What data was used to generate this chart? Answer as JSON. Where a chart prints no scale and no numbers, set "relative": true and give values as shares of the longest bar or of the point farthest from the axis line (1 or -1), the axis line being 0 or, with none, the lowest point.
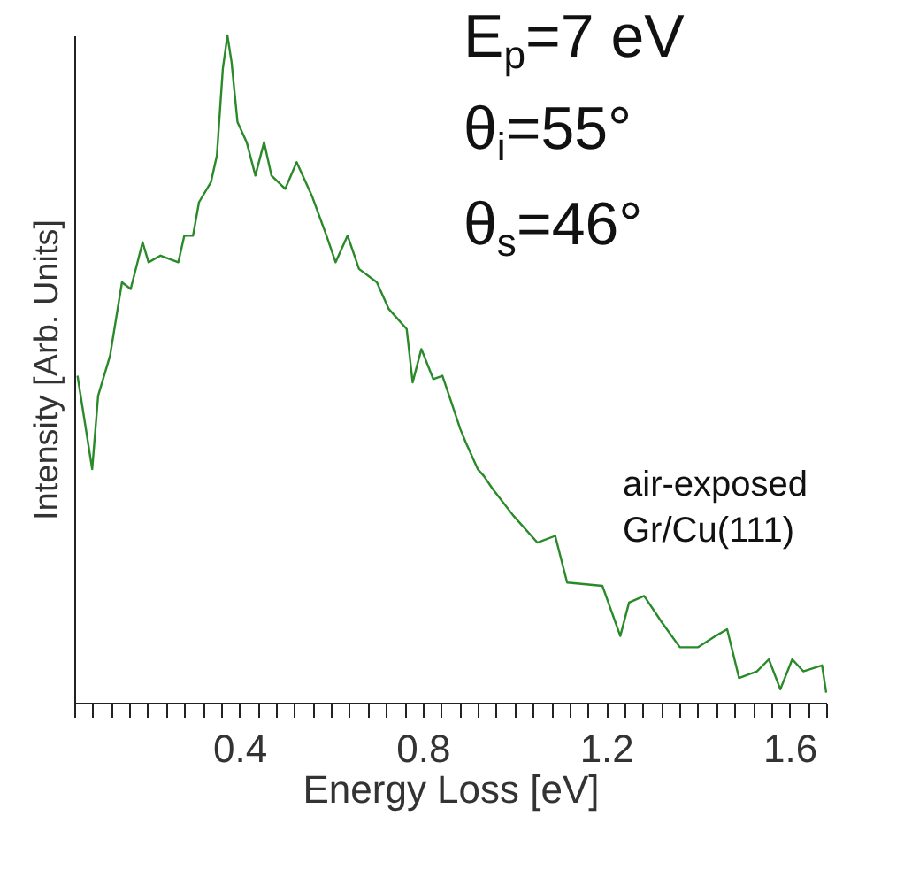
{
  "chart_data": {
    "type": "line",
    "relative": true,
    "xlabel": "Energy Loss [eV]",
    "ylabel": "Intensity [Arb. Units]",
    "annotations": [
      "E$_{p}$=7 eV",
      "θ$_{i}$=55°",
      "θ$_{s}$=46°",
      "air-exposed",
      "Gr/Cu(111)"
    ],
    "xlim": [
      0.04,
      1.68
    ],
    "xticks": [
      {
        "value": 0.04,
        "label": null
      },
      {
        "value": 0.08,
        "label": null
      },
      {
        "value": 0.12,
        "label": null
      },
      {
        "value": 0.16,
        "label": null
      },
      {
        "value": 0.2,
        "label": null
      },
      {
        "value": 0.24,
        "label": null
      },
      {
        "value": 0.28,
        "label": null
      },
      {
        "value": 0.32,
        "label": null
      },
      {
        "value": 0.36,
        "label": null
      },
      0.4,
      {
        "value": 0.44,
        "label": null
      },
      {
        "value": 0.48,
        "label": null
      },
      {
        "value": 0.52,
        "label": null
      },
      {
        "value": 0.56,
        "label": null
      },
      {
        "value": 0.6,
        "label": null
      },
      {
        "value": 0.64,
        "label": null
      },
      {
        "value": 0.68,
        "label": null
      },
      {
        "value": 0.72,
        "label": null
      },
      {
        "value": 0.76,
        "label": null
      },
      0.8,
      {
        "value": 0.84,
        "label": null
      },
      {
        "value": 0.88,
        "label": null
      },
      {
        "value": 0.92,
        "label": null
      },
      {
        "value": 0.96,
        "label": null
      },
      {
        "value": 1,
        "label": null
      },
      {
        "value": 1.04,
        "label": null
      },
      {
        "value": 1.08,
        "label": null
      },
      {
        "value": 1.12,
        "label": null
      },
      {
        "value": 1.16,
        "label": null
      },
      1.2,
      {
        "value": 1.24,
        "label": null
      },
      {
        "value": 1.28,
        "label": null
      },
      {
        "value": 1.32,
        "label": null
      },
      {
        "value": 1.36,
        "label": null
      },
      {
        "value": 1.4,
        "label": null
      },
      {
        "value": 1.44,
        "label": null
      },
      {
        "value": 1.48,
        "label": null
      },
      {
        "value": 1.52,
        "label": null
      },
      {
        "value": 1.56,
        "label": null
      },
      1.6,
      {
        "value": 1.64,
        "label": null
      },
      {
        "value": 1.68,
        "label": null
      }
    ],
    "grid": false,
    "marker": "none",
    "line_style": "solid",
    "series": [
      {
        "color": "#2a8a2a",
        "x": [
          0.047,
          0.079,
          0.092,
          0.118,
          0.144,
          0.163,
          0.189,
          0.202,
          0.228,
          0.267,
          0.28,
          0.299,
          0.312,
          0.338,
          0.351,
          0.364,
          0.374,
          0.383,
          0.396,
          0.416,
          0.435,
          0.454,
          0.47,
          0.5,
          0.525,
          0.558,
          0.59,
          0.61,
          0.636,
          0.661,
          0.7,
          0.726,
          0.765,
          0.778,
          0.797,
          0.823,
          0.843,
          0.882,
          0.894,
          0.92,
          0.933,
          0.953,
          0.998,
          1.05,
          1.089,
          1.115,
          1.192,
          1.231,
          1.25,
          1.283,
          1.322,
          1.361,
          1.4,
          1.439,
          1.464,
          1.49,
          1.529,
          1.555,
          1.58,
          1.606,
          1.63,
          1.671,
          1.68
        ],
        "values": [
          0.49,
          0.35,
          0.46,
          0.52,
          0.63,
          0.62,
          0.69,
          0.66,
          0.67,
          0.66,
          0.7,
          0.7,
          0.75,
          0.78,
          0.82,
          0.95,
          1,
          0.96,
          0.87,
          0.84,
          0.79,
          0.84,
          0.79,
          0.77,
          0.81,
          0.76,
          0.7,
          0.66,
          0.7,
          0.65,
          0.63,
          0.59,
          0.56,
          0.48,
          0.53,
          0.485,
          0.49,
          0.41,
          0.39,
          0.35,
          0.34,
          0.32,
          0.28,
          0.24,
          0.25,
          0.18,
          0.175,
          0.1,
          0.15,
          0.16,
          0.12,
          0.083,
          0.083,
          0.1,
          0.11,
          0.037,
          0.047,
          0.065,
          0.02,
          0.065,
          0.047,
          0.056,
          0.015
        ]
      }
    ]
  }
}
